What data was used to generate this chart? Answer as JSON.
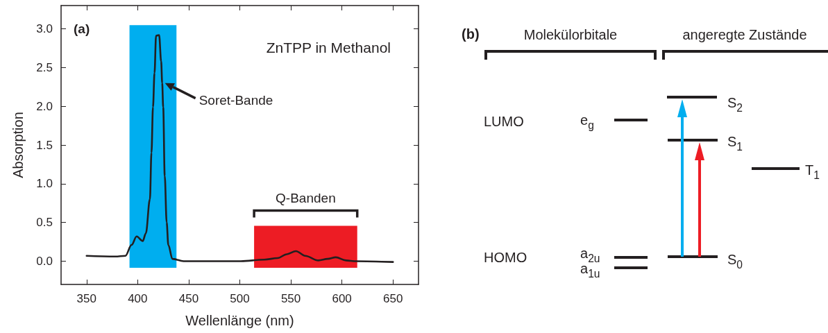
{
  "chart_data": [
    {
      "type": "line",
      "title": "ZnTPP in Methanol",
      "xlabel": "Wellenlänge (nm)",
      "ylabel": "Absorption",
      "marker": "none",
      "x": [
        350,
        378,
        388,
        394,
        399,
        405,
        408,
        412,
        413.5,
        415,
        416.5,
        418,
        421,
        423,
        424,
        425,
        426.5,
        428.4,
        430,
        434,
        445,
        501,
        524,
        537,
        546,
        555,
        564,
        577,
        586,
        594,
        604,
        613,
        650
      ],
      "series": [
        {
          "color": "#231f20",
          "values": [
            0.07,
            0.06,
            0.07,
            0.21,
            0.32,
            0.26,
            0.36,
            0.8,
            1.4,
            1.99,
            2.43,
            2.91,
            2.92,
            2.58,
            2.3,
            1.99,
            1.1,
            0.5,
            0.21,
            0.03,
            0.0,
            0.0,
            0.02,
            0.04,
            0.09,
            0.13,
            0.07,
            0.01,
            0.03,
            0.05,
            0.01,
            0.0,
            -0.01
          ]
        }
      ],
      "xlim": [
        325,
        675
      ],
      "xticks": [
        350,
        400,
        450,
        500,
        550,
        600,
        650
      ],
      "ylim": [
        -0.3,
        3.3
      ],
      "yticks": [
        {
          "value": 0,
          "label": "0.0"
        },
        {
          "value": 0.5,
          "label": "0.5"
        },
        {
          "value": 1,
          "label": "1.0"
        },
        {
          "value": 1.5,
          "label": "1.5"
        },
        {
          "value": 2,
          "label": "2.0"
        },
        {
          "value": 2.5,
          "label": "2.5"
        },
        {
          "value": 3,
          "label": "3.0"
        }
      ],
      "bands": [
        {
          "axis": "x",
          "from": 392,
          "to": 438,
          "color": "#00aeef"
        },
        {
          "axis": "x",
          "from": 514,
          "to": 615,
          "color": "#ed1c24",
          "label": "Q-Banden"
        }
      ],
      "annotations": [
        "(a)",
        {
          "text": "Soret-Bande",
          "x": 424,
          "y": 2.3
        }
      ]
    },
    {
      "type": "other",
      "annotations": [
        "(b)",
        "Molekülorbitale",
        "angeregte Zustände",
        "LUMO",
        "HOMO",
        "e$_{g}$",
        "a$_{2u}$",
        "a$_{1u}$",
        "S$_{2}$",
        "S$_{1}$",
        "S$_{0}$",
        "T$_{1}$"
      ]
    }
  ]
}
